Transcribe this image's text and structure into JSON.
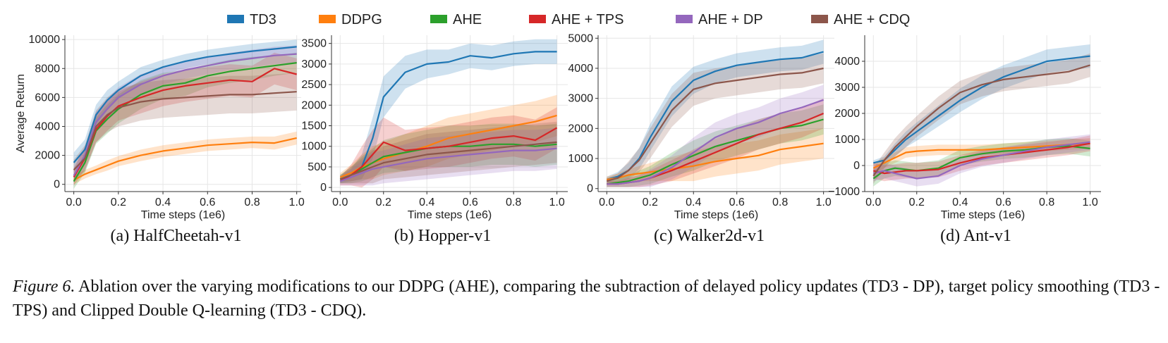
{
  "figure_caption": {
    "label": "Figure 6.",
    "text": "Ablation over the varying modifications to our DDPG (AHE), comparing the subtraction of delayed policy updates (TD3 - DP), target policy smoothing (TD3 - TPS) and Clipped Double Q-learning (TD3 - CDQ)."
  },
  "legend": [
    {
      "name": "TD3",
      "color": "#1f77b4"
    },
    {
      "name": "DDPG",
      "color": "#ff7f0e"
    },
    {
      "name": "AHE",
      "color": "#2ca02c"
    },
    {
      "name": "AHE + TPS",
      "color": "#d62728"
    },
    {
      "name": "AHE + DP",
      "color": "#9467bd"
    },
    {
      "name": "AHE + CDQ",
      "color": "#8c564b"
    }
  ],
  "chart_data": [
    {
      "type": "line",
      "title": "(a) HalfCheetah-v1",
      "xlabel": "Time steps (1e6)",
      "ylabel": "Average Return",
      "xlim": [
        -0.04,
        1.02
      ],
      "ylim": [
        -500,
        10300
      ],
      "xticks": [
        0.0,
        0.2,
        0.4,
        0.6,
        0.8,
        1.0
      ],
      "xtick_labels": [
        "0.0",
        "0.2",
        "0.4",
        "0.6",
        "0.8",
        "1.0"
      ],
      "yticks": [
        0,
        2000,
        4000,
        6000,
        8000,
        10000
      ],
      "ytick_labels": [
        "0",
        "2000",
        "4000",
        "6000",
        "8000",
        "10000"
      ],
      "x": [
        0.0,
        0.05,
        0.1,
        0.15,
        0.2,
        0.3,
        0.4,
        0.5,
        0.6,
        0.7,
        0.8,
        0.9,
        1.0
      ],
      "series": [
        {
          "name": "TD3",
          "values": [
            1500,
            2400,
            4800,
            5800,
            6500,
            7500,
            8100,
            8500,
            8800,
            9000,
            9200,
            9350,
            9500
          ],
          "band": [
            700,
            700,
            700,
            700,
            600,
            600,
            500,
            500,
            500,
            500,
            500,
            500,
            500
          ]
        },
        {
          "name": "DDPG",
          "values": [
            300,
            700,
            1000,
            1300,
            1600,
            2000,
            2300,
            2500,
            2700,
            2800,
            2900,
            2850,
            3200
          ],
          "band": [
            300,
            300,
            300,
            350,
            350,
            400,
            400,
            400,
            400,
            400,
            400,
            450,
            450
          ]
        },
        {
          "name": "AHE",
          "values": [
            200,
            1500,
            3700,
            4500,
            5200,
            6200,
            6800,
            7000,
            7500,
            7800,
            8000,
            8200,
            8400
          ],
          "band": [
            500,
            700,
            900,
            1000,
            1000,
            1000,
            900,
            900,
            800,
            800,
            800,
            700,
            700
          ]
        },
        {
          "name": "AHE + TPS",
          "values": [
            500,
            1800,
            3800,
            4700,
            5400,
            6000,
            6500,
            6800,
            7000,
            7200,
            7100,
            8000,
            7600
          ],
          "band": [
            600,
            800,
            900,
            1000,
            1000,
            1100,
            1100,
            1100,
            1100,
            1100,
            1100,
            1100,
            1100
          ]
        },
        {
          "name": "AHE + DP",
          "values": [
            600,
            2000,
            4300,
            5200,
            6000,
            6900,
            7500,
            7900,
            8200,
            8500,
            8700,
            8900,
            9000
          ],
          "band": [
            500,
            600,
            700,
            700,
            700,
            700,
            600,
            600,
            600,
            600,
            600,
            600,
            600
          ]
        },
        {
          "name": "AHE + CDQ",
          "values": [
            1000,
            1800,
            4000,
            4800,
            5300,
            5700,
            5900,
            6000,
            6100,
            6200,
            6200,
            6300,
            6400
          ],
          "band": [
            700,
            900,
            1100,
            1200,
            1300,
            1300,
            1300,
            1300,
            1300,
            1300,
            1300,
            1300,
            1300
          ]
        }
      ]
    },
    {
      "type": "line",
      "title": "(b) Hopper-v1",
      "xlabel": "Time steps (1e6)",
      "ylabel": "",
      "xlim": [
        -0.04,
        1.05
      ],
      "ylim": [
        -100,
        3700
      ],
      "xticks": [
        0.0,
        0.2,
        0.4,
        0.6,
        0.8,
        1.0
      ],
      "xtick_labels": [
        "0.0",
        "0.2",
        "0.4",
        "0.6",
        "0.8",
        "1.0"
      ],
      "yticks": [
        0,
        500,
        1000,
        1500,
        2000,
        2500,
        3000,
        3500
      ],
      "ytick_labels": [
        "0",
        "500",
        "1000",
        "1500",
        "2000",
        "2500",
        "3000",
        "3500"
      ],
      "x": [
        0.0,
        0.05,
        0.1,
        0.15,
        0.2,
        0.3,
        0.4,
        0.5,
        0.6,
        0.7,
        0.8,
        0.9,
        1.0
      ],
      "series": [
        {
          "name": "TD3",
          "values": [
            200,
            300,
            500,
            1200,
            2200,
            2800,
            3000,
            3050,
            3200,
            3150,
            3250,
            3300,
            3300
          ],
          "band": [
            100,
            150,
            300,
            500,
            500,
            400,
            350,
            300,
            300,
            300,
            300,
            300,
            300
          ]
        },
        {
          "name": "DDPG",
          "values": [
            250,
            350,
            500,
            600,
            700,
            850,
            1000,
            1200,
            1300,
            1400,
            1500,
            1600,
            1750
          ],
          "band": [
            100,
            200,
            300,
            400,
            400,
            450,
            500,
            500,
            500,
            500,
            500,
            500,
            500
          ]
        },
        {
          "name": "AHE",
          "values": [
            200,
            300,
            450,
            600,
            750,
            850,
            950,
            1000,
            1000,
            1050,
            1050,
            1000,
            1050
          ],
          "band": [
            100,
            200,
            300,
            350,
            400,
            450,
            450,
            500,
            500,
            500,
            500,
            500,
            500
          ]
        },
        {
          "name": "AHE + TPS",
          "values": [
            150,
            300,
            500,
            800,
            1100,
            900,
            950,
            1000,
            1100,
            1200,
            1250,
            1150,
            1450
          ],
          "band": [
            100,
            250,
            500,
            600,
            600,
            500,
            500,
            500,
            500,
            500,
            500,
            500,
            500
          ]
        },
        {
          "name": "AHE + DP",
          "values": [
            150,
            250,
            350,
            450,
            500,
            600,
            700,
            750,
            800,
            850,
            900,
            900,
            950
          ],
          "band": [
            100,
            200,
            300,
            400,
            400,
            450,
            500,
            500,
            500,
            500,
            500,
            500,
            500
          ]
        },
        {
          "name": "AHE + CDQ",
          "values": [
            200,
            300,
            400,
            500,
            600,
            700,
            800,
            850,
            900,
            950,
            1000,
            1050,
            1100
          ],
          "band": [
            100,
            200,
            300,
            400,
            400,
            450,
            500,
            500,
            500,
            500,
            500,
            500,
            500
          ]
        }
      ]
    },
    {
      "type": "line",
      "title": "(c) Walker2d-v1",
      "xlabel": "Time steps (1e6)",
      "ylabel": "",
      "xlim": [
        -0.04,
        1.05
      ],
      "ylim": [
        -100,
        5100
      ],
      "xticks": [
        0.0,
        0.2,
        0.4,
        0.6,
        0.8,
        1.0
      ],
      "xtick_labels": [
        "0.0",
        "0.2",
        "0.4",
        "0.6",
        "0.8",
        "1.0"
      ],
      "yticks": [
        0,
        1000,
        2000,
        3000,
        4000,
        5000
      ],
      "ytick_labels": [
        "0",
        "1000",
        "2000",
        "3000",
        "4000",
        "5000"
      ],
      "x": [
        0.0,
        0.05,
        0.1,
        0.15,
        0.2,
        0.3,
        0.4,
        0.5,
        0.6,
        0.7,
        0.8,
        0.9,
        1.0
      ],
      "series": [
        {
          "name": "TD3",
          "values": [
            300,
            400,
            600,
            1000,
            1700,
            2900,
            3600,
            3900,
            4100,
            4200,
            4300,
            4350,
            4550
          ],
          "band": [
            100,
            150,
            250,
            350,
            450,
            500,
            450,
            400,
            400,
            400,
            400,
            400,
            400
          ]
        },
        {
          "name": "DDPG",
          "values": [
            300,
            350,
            450,
            500,
            550,
            650,
            750,
            900,
            1000,
            1100,
            1300,
            1400,
            1500
          ],
          "band": [
            100,
            150,
            200,
            250,
            300,
            400,
            500,
            500,
            500,
            500,
            500,
            500,
            500
          ]
        },
        {
          "name": "AHE",
          "values": [
            150,
            200,
            250,
            350,
            450,
            800,
            1100,
            1400,
            1600,
            1800,
            2000,
            2100,
            2300
          ],
          "band": [
            100,
            150,
            200,
            250,
            300,
            400,
            500,
            500,
            500,
            500,
            500,
            500,
            500
          ]
        },
        {
          "name": "AHE + TPS",
          "values": [
            150,
            150,
            200,
            250,
            350,
            600,
            900,
            1200,
            1500,
            1800,
            2000,
            2200,
            2500
          ],
          "band": [
            100,
            100,
            150,
            200,
            250,
            350,
            400,
            450,
            500,
            500,
            500,
            500,
            500
          ]
        },
        {
          "name": "AHE + DP",
          "values": [
            150,
            150,
            200,
            250,
            350,
            700,
            1200,
            1700,
            2000,
            2200,
            2500,
            2700,
            2950
          ],
          "band": [
            100,
            100,
            150,
            200,
            300,
            400,
            500,
            500,
            500,
            500,
            500,
            500,
            500
          ]
        },
        {
          "name": "AHE + CDQ",
          "values": [
            250,
            350,
            600,
            950,
            1500,
            2600,
            3300,
            3500,
            3600,
            3700,
            3800,
            3850,
            4000
          ],
          "band": [
            100,
            150,
            300,
            400,
            500,
            550,
            550,
            500,
            500,
            500,
            500,
            500,
            500
          ]
        }
      ]
    },
    {
      "type": "line",
      "title": "(d) Ant-v1",
      "xlabel": "Time steps (1e6)",
      "ylabel": "",
      "xlim": [
        -0.04,
        1.05
      ],
      "ylim": [
        -1000,
        5000
      ],
      "xticks": [
        0.0,
        0.2,
        0.4,
        0.6,
        0.8,
        1.0
      ],
      "xtick_labels": [
        "0.0",
        "0.2",
        "0.4",
        "0.6",
        "0.8",
        "1.0"
      ],
      "yticks": [
        -1000,
        0,
        1000,
        2000,
        3000,
        4000
      ],
      "ytick_labels": [
        "−1000",
        "0",
        "1000",
        "2000",
        "3000",
        "4000"
      ],
      "x": [
        0.0,
        0.05,
        0.1,
        0.15,
        0.2,
        0.3,
        0.4,
        0.5,
        0.6,
        0.7,
        0.8,
        0.9,
        1.0
      ],
      "series": [
        {
          "name": "TD3",
          "values": [
            100,
            200,
            600,
            1000,
            1300,
            1900,
            2500,
            3000,
            3400,
            3700,
            4000,
            4100,
            4200
          ],
          "band": [
            100,
            150,
            250,
            300,
            350,
            400,
            450,
            450,
            450,
            450,
            450,
            450,
            450
          ]
        },
        {
          "name": "DDPG",
          "values": [
            -100,
            100,
            300,
            500,
            550,
            600,
            600,
            600,
            650,
            700,
            750,
            800,
            850
          ],
          "band": [
            200,
            200,
            200,
            200,
            200,
            200,
            200,
            200,
            200,
            200,
            200,
            200,
            200
          ]
        },
        {
          "name": "AHE",
          "values": [
            -500,
            -200,
            -100,
            -150,
            -200,
            -100,
            300,
            450,
            550,
            600,
            700,
            750,
            650
          ],
          "band": [
            300,
            300,
            300,
            300,
            300,
            300,
            300,
            300,
            300,
            300,
            300,
            300,
            300
          ]
        },
        {
          "name": "AHE + TPS",
          "values": [
            -200,
            -300,
            -250,
            -200,
            -200,
            -150,
            100,
            300,
            400,
            500,
            600,
            700,
            850
          ],
          "band": [
            300,
            300,
            300,
            300,
            300,
            300,
            300,
            300,
            300,
            300,
            300,
            300,
            300
          ]
        },
        {
          "name": "AHE + DP",
          "values": [
            -300,
            -200,
            -300,
            -400,
            -500,
            -400,
            0,
            250,
            400,
            550,
            700,
            800,
            900
          ],
          "band": [
            300,
            300,
            300,
            300,
            300,
            300,
            300,
            300,
            300,
            300,
            300,
            300,
            300
          ]
        },
        {
          "name": "AHE + CDQ",
          "values": [
            -400,
            200,
            700,
            1100,
            1500,
            2200,
            2800,
            3100,
            3300,
            3400,
            3500,
            3600,
            3850
          ],
          "band": [
            300,
            300,
            350,
            400,
            400,
            450,
            450,
            450,
            450,
            450,
            450,
            450,
            450
          ]
        }
      ]
    }
  ]
}
